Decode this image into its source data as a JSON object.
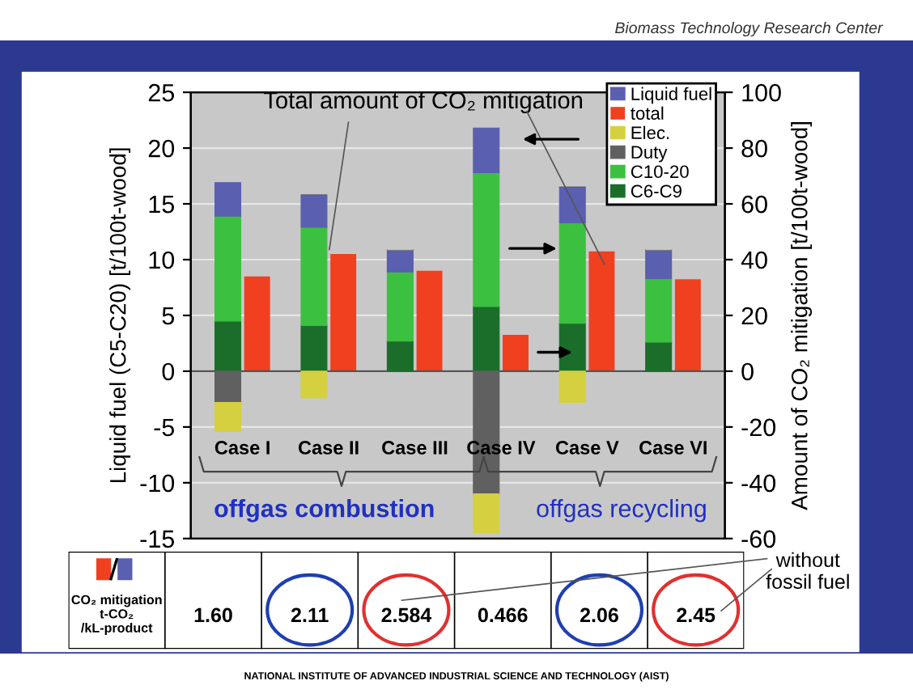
{
  "chart_data": {
    "type": "bar",
    "stacked": true,
    "categories": [
      "Case I",
      "Case II",
      "Case III",
      "Case IV",
      "Case V",
      "Case VI"
    ],
    "ylabel": "Liquid fuel (C5-C20) [t/100t-wood]",
    "y2label": "Amount of CO₂ mitigation [t/100t-wood]",
    "ylim": [
      -15,
      25
    ],
    "yticks": [
      -15,
      -10,
      -5,
      0,
      5,
      10,
      15,
      20,
      25
    ],
    "y2lim": [
      -60,
      100
    ],
    "y2ticks": [
      -60,
      -40,
      -20,
      0,
      20,
      40,
      60,
      80,
      100
    ],
    "grid": "y",
    "legend": "top right",
    "series": [
      {
        "name": "C6-C9",
        "color": "#1a6e2a",
        "values": [
          4.5,
          4.1,
          2.7,
          5.8,
          4.3,
          2.6
        ]
      },
      {
        "name": "C10-20",
        "color": "#3cc040",
        "values": [
          9.4,
          8.8,
          6.2,
          12.0,
          9.0,
          5.7
        ]
      },
      {
        "name": "Liquid fuel",
        "color": "#5a5fb0",
        "values": [
          3.0,
          2.9,
          2.0,
          4.0,
          3.2,
          2.6
        ]
      },
      {
        "name": "Duty",
        "color": "#606060",
        "values": [
          -2.8,
          0,
          0,
          -11.0,
          0,
          0
        ]
      },
      {
        "name": "Elec.",
        "color": "#d4d040",
        "values": [
          -2.6,
          -2.4,
          0,
          -3.5,
          -2.8,
          0
        ]
      },
      {
        "name": "total",
        "color": "#f04020",
        "axis": "y2",
        "values": [
          34,
          42,
          36,
          13,
          43,
          33
        ]
      }
    ],
    "annotations": [
      "Biomass Technology Research Center",
      {
        "text": "Total amount of CO₂ mitigation",
        "x": "Case II",
        "y": 10.5
      },
      "offgas combustion",
      "offgas recycling",
      "CO₂ mitigation\nt-CO₂\n/kL-product",
      "1.60",
      "2.11",
      "2.584",
      "0.466",
      "2.06",
      "2.45",
      "without\nfossil fuel",
      "NATIONAL INSTITUTE OF ADVANCED INDUSTRIAL SCIENCE AND TECHNOLOGY (AIST)"
    ]
  }
}
